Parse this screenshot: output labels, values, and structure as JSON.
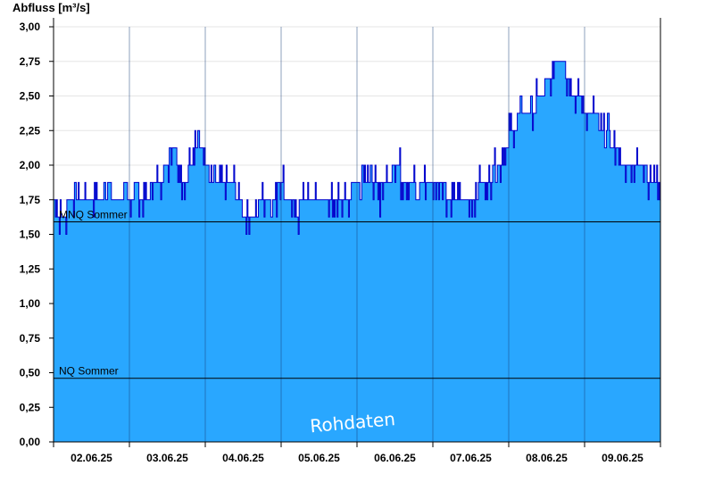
{
  "chart_data": {
    "type": "area",
    "ylabel": "Abfluss [m³/s]",
    "ylim": [
      0,
      3.0
    ],
    "yticks": [
      "0,00",
      "0,25",
      "0,50",
      "0,75",
      "1,00",
      "1,25",
      "1,50",
      "1,75",
      "2,00",
      "2,25",
      "2,50",
      "2,75",
      "3,00"
    ],
    "categories": [
      "02.06.25",
      "03.06.25",
      "04.06.25",
      "05.06.25",
      "06.06.25",
      "07.06.25",
      "08.06.25",
      "09.06.25"
    ],
    "xlim_days": [
      0,
      8
    ],
    "grid": true,
    "colors": {
      "fill": "#29a7ff",
      "line": "#0000cc",
      "ref": "#000000",
      "axis": "#000000"
    },
    "reference_lines": [
      {
        "name": "MNQ Sommer",
        "value": 1.59
      },
      {
        "name": "NQ Sommer",
        "value": 0.46
      }
    ],
    "watermark": "Rohdaten",
    "series": [
      {
        "x": [
          0,
          0.1,
          0.2,
          0.3,
          0.4,
          0.5,
          0.6,
          0.7,
          0.8,
          0.9,
          1.0,
          1.1,
          1.2,
          1.3,
          1.4,
          1.5,
          1.6,
          1.7,
          1.8,
          1.9,
          2.0,
          2.1,
          2.2,
          2.3,
          2.4,
          2.5,
          2.6,
          2.7,
          2.8,
          2.9,
          3.0,
          3.1,
          3.2,
          3.3,
          3.4,
          3.5,
          3.6,
          3.7,
          3.8,
          3.9,
          4.0,
          4.1,
          4.2,
          4.3,
          4.4,
          4.5,
          4.6,
          4.7,
          4.8,
          4.9,
          5.0,
          5.1,
          5.2,
          5.3,
          5.4,
          5.5,
          5.6,
          5.7,
          5.8,
          5.9,
          6.0,
          6.1,
          6.2,
          6.3,
          6.4,
          6.5,
          6.6,
          6.7,
          6.8,
          6.9,
          7.0,
          7.1,
          7.2,
          7.3,
          7.4,
          7.5,
          7.6,
          7.7,
          7.8,
          7.9,
          8.0
        ],
        "values": [
          1.75,
          1.6,
          1.72,
          1.78,
          1.8,
          1.76,
          1.8,
          1.82,
          1.8,
          1.75,
          1.8,
          1.82,
          1.75,
          1.83,
          1.9,
          2.05,
          2.1,
          1.9,
          1.95,
          2.3,
          1.95,
          1.9,
          1.85,
          1.85,
          1.82,
          1.65,
          1.6,
          1.7,
          1.8,
          1.75,
          1.9,
          1.7,
          1.65,
          1.75,
          1.7,
          1.75,
          1.78,
          1.65,
          1.8,
          1.8,
          1.85,
          2.0,
          1.85,
          1.8,
          1.9,
          2.0,
          1.9,
          1.85,
          1.8,
          1.85,
          1.88,
          1.85,
          1.8,
          1.75,
          1.8,
          1.75,
          1.82,
          1.9,
          1.95,
          2.05,
          2.2,
          2.3,
          2.4,
          2.42,
          2.45,
          2.6,
          2.7,
          2.75,
          2.6,
          2.5,
          2.4,
          2.35,
          2.3,
          2.25,
          2.1,
          2.05,
          2.05,
          2.0,
          1.95,
          1.9,
          1.88
        ]
      }
    ]
  }
}
